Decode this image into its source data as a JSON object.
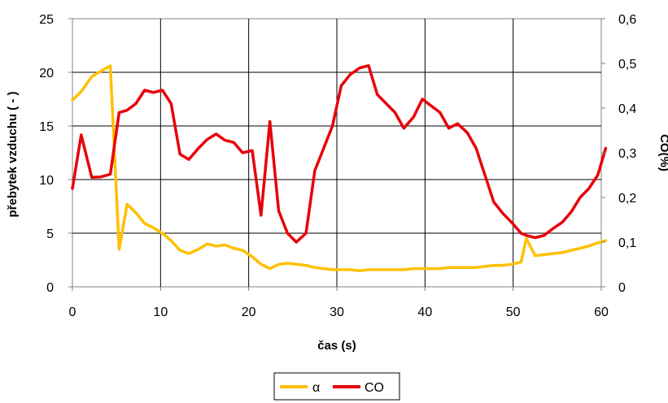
{
  "chart_data": {
    "type": "line",
    "title": "",
    "xlabel": "čas (s)",
    "ylabel_left": "přebytek vzduchu ( - )",
    "ylabel_right": "CO(%)",
    "xlim": [
      0,
      60
    ],
    "ylim_left": [
      0,
      25
    ],
    "ylim_right": [
      0,
      0.6
    ],
    "x_ticks": [
      "0",
      "10",
      "20",
      "30",
      "40",
      "50",
      "60"
    ],
    "y_left_ticks": [
      "0",
      "5",
      "10",
      "15",
      "20",
      "25"
    ],
    "y_right_ticks": [
      "0",
      "0,1",
      "0,2",
      "0,3",
      "0,4",
      "0,5",
      "0,6"
    ],
    "grid": true,
    "legend_position": "bottom",
    "series": [
      {
        "name": "α",
        "axis": "left",
        "color": "#FFC000",
        "x": [
          0,
          1,
          2.2,
          3.2,
          4.3,
          5.3,
          6.2,
          7.2,
          8.2,
          9.2,
          10.2,
          11.2,
          12.2,
          13.2,
          14.3,
          15.3,
          16.3,
          17.3,
          18.3,
          19.3,
          20.4,
          21.4,
          22.4,
          23.4,
          24.4,
          25.4,
          26.5,
          27.5,
          28.5,
          29.5,
          30.5,
          31.5,
          32.6,
          33.6,
          34.6,
          35.6,
          36.6,
          37.6,
          38.7,
          39.7,
          40.7,
          41.7,
          42.7,
          43.7,
          44.8,
          45.8,
          46.8,
          47.8,
          48.8,
          49.8,
          50.9,
          51.5,
          52.5,
          53.5,
          54.5,
          55.6,
          56.6,
          57.6,
          58.6,
          59.6,
          60.5
        ],
        "values": [
          17.4,
          18.2,
          19.6,
          20.1,
          20.6,
          3.5,
          7.7,
          6.9,
          5.9,
          5.5,
          5.0,
          4.3,
          3.4,
          3.1,
          3.5,
          4.0,
          3.8,
          3.9,
          3.6,
          3.4,
          2.8,
          2.1,
          1.7,
          2.1,
          2.2,
          2.1,
          2.0,
          1.8,
          1.7,
          1.6,
          1.6,
          1.6,
          1.5,
          1.6,
          1.6,
          1.6,
          1.6,
          1.6,
          1.7,
          1.7,
          1.7,
          1.7,
          1.8,
          1.8,
          1.8,
          1.8,
          1.9,
          2.0,
          2.0,
          2.1,
          2.3,
          4.5,
          2.9,
          3.0,
          3.1,
          3.2,
          3.4,
          3.6,
          3.8,
          4.1,
          4.3
        ]
      },
      {
        "name": "CO",
        "axis": "right",
        "color": "#E8000B",
        "x": [
          0,
          1,
          2.2,
          3.2,
          4.3,
          5.3,
          6.2,
          7.2,
          8.2,
          9.2,
          10.2,
          11.2,
          12.2,
          13.2,
          14.3,
          15.3,
          16.3,
          17.3,
          18.3,
          19.3,
          20.4,
          21.4,
          22.4,
          23.4,
          24.4,
          25.4,
          26.5,
          27.5,
          28.5,
          29.5,
          30.5,
          31.5,
          32.6,
          33.6,
          34.6,
          35.6,
          36.6,
          37.6,
          38.7,
          39.7,
          40.7,
          41.7,
          42.7,
          43.7,
          44.8,
          45.8,
          46.8,
          47.8,
          48.8,
          49.8,
          50.9,
          51.5,
          52.5,
          53.5,
          54.5,
          55.6,
          56.6,
          57.6,
          58.6,
          59.6,
          60.5
        ],
        "values": [
          0.22,
          0.34,
          0.245,
          0.246,
          0.252,
          0.39,
          0.395,
          0.41,
          0.44,
          0.435,
          0.44,
          0.41,
          0.297,
          0.285,
          0.31,
          0.33,
          0.342,
          0.328,
          0.323,
          0.3,
          0.305,
          0.16,
          0.37,
          0.17,
          0.12,
          0.1,
          0.12,
          0.26,
          0.31,
          0.36,
          0.45,
          0.475,
          0.49,
          0.495,
          0.43,
          0.41,
          0.39,
          0.355,
          0.38,
          0.42,
          0.405,
          0.39,
          0.355,
          0.365,
          0.345,
          0.31,
          0.25,
          0.19,
          0.165,
          0.145,
          0.12,
          0.115,
          0.11,
          0.115,
          0.13,
          0.145,
          0.168,
          0.2,
          0.22,
          0.25,
          0.31
        ]
      }
    ]
  }
}
